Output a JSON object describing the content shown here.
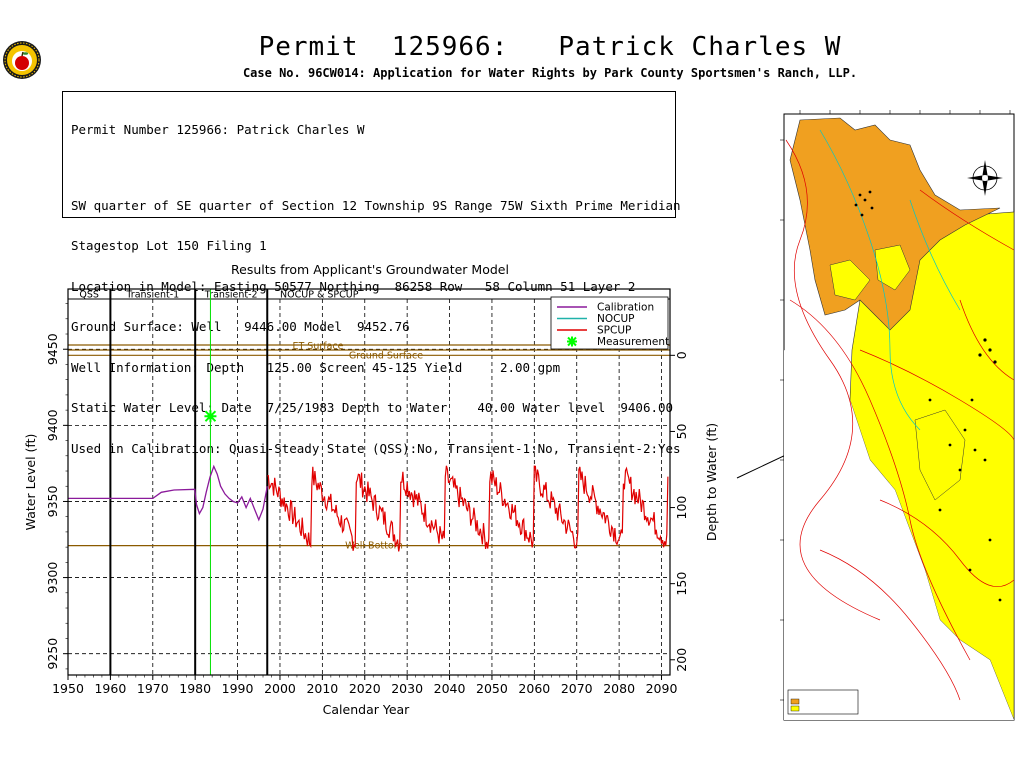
{
  "header": {
    "title": "Permit  125966:   Patrick Charles W",
    "subtitle": "Case No. 96CW014: Application for Water Rights by Park County Sportsmen's Ranch, LLP."
  },
  "info_box": {
    "lines": [
      "Permit Number 125966: Patrick Charles W",
      "SW quarter of SE quarter of Section 12 Township 9S Range 75W Sixth Prime Meridian",
      "Stagestop Lot 150 Filing 1",
      "Location in Model: Easting 50577 Northing  86258 Row   58 Column 51 Layer 2",
      "Ground Surface: Well   9446.00 Model  9452.76",
      "Well Information: Depth   125.00 Screen 45-125 Yield     2.00 gpm",
      "Static Water Level: Date  7/25/1983 Depth to Water    40.00 Water level  9406.00",
      "Used in Calibration: Quasi-Steady State (QSS):No, Transient-1:No, Transient-2:Yes"
    ]
  },
  "chart_data": {
    "type": "line",
    "title": "Results from Applicant's Groundwater Model",
    "xlabel": "Calendar Year",
    "ylabel": "Water Level (ft)",
    "ylabel_right": "Depth to Water (ft)",
    "xlim": [
      1950,
      2092
    ],
    "ylim": [
      9236,
      9483
    ],
    "x_ticks": [
      1950,
      1960,
      1970,
      1980,
      1990,
      2000,
      2010,
      2020,
      2030,
      2040,
      2050,
      2060,
      2070,
      2080,
      2090
    ],
    "y_ticks": [
      9250,
      9300,
      9350,
      9400,
      9450
    ],
    "right_ticks": [
      0,
      50,
      100,
      150,
      200
    ],
    "ground_surface_elevation": 9446,
    "grid": "dashed",
    "periods": [
      {
        "label": "QSS",
        "start": 1950,
        "end": 1960
      },
      {
        "label": "Transient-1",
        "start": 1960,
        "end": 1980
      },
      {
        "label": "Transient-2",
        "start": 1980,
        "end": 1997
      },
      {
        "label": "NOCUP  &  SPCUP",
        "start": 1997,
        "end": 2092
      }
    ],
    "reference_lines": [
      {
        "label": "ET Surface",
        "value": 9452.8,
        "value2": 9449.5,
        "color": "#8B5A00"
      },
      {
        "label": "Ground Surface",
        "value": 9446.0,
        "color": "#8B5A00"
      },
      {
        "label": "Well Bottom",
        "value": 9321.0,
        "color": "#8B5A00"
      }
    ],
    "measurement_marker_year": 1983.6,
    "legend_position": "top-right",
    "legend": [
      {
        "label": "Calibration",
        "color": "#8B1A9B"
      },
      {
        "label": "NOCUP",
        "color": "#20B2AA"
      },
      {
        "label": "SPCUP",
        "color": "#E00000"
      },
      {
        "label": "Measurement",
        "color": "#00FF00"
      }
    ],
    "series": [
      {
        "name": "Calibration",
        "color": "#8B1A9B",
        "x": [
          1950,
          1960,
          1970,
          1972,
          1975,
          1979.9,
          1980.3,
          1981.0,
          1981.8,
          1982.6,
          1983.5,
          1984.4,
          1985.2,
          1986.0,
          1987.0,
          1988.0,
          1989.0,
          1990.0,
          1991.0,
          1992.0,
          1993.0,
          1994.0,
          1995.0,
          1996.0,
          1997.0
        ],
        "y": [
          9352,
          9352,
          9352,
          9356,
          9357.5,
          9358,
          9348,
          9342,
          9346,
          9356,
          9366,
          9373,
          9368,
          9360,
          9355,
          9352,
          9350,
          9349,
          9353,
          9346,
          9352,
          9345,
          9338,
          9345,
          9360
        ]
      },
      {
        "name": "Measurement",
        "color": "#00FF00",
        "x": [
          1983.6
        ],
        "y": [
          9406
        ]
      }
    ]
  }
}
